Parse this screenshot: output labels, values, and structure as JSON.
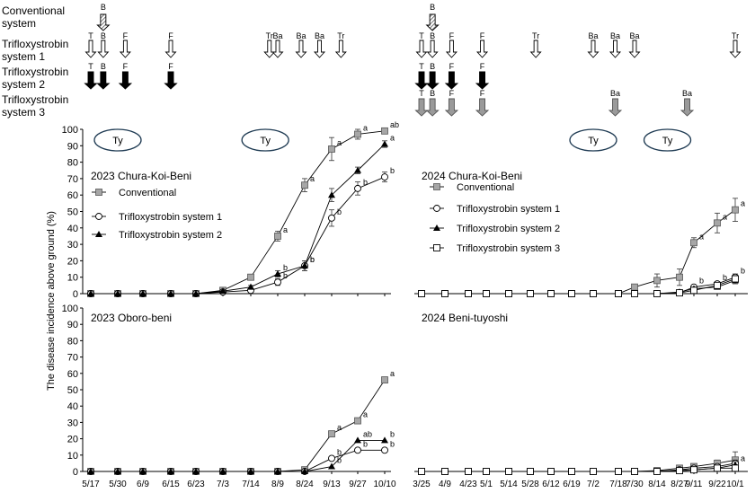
{
  "schedule": {
    "rows": [
      "Conventional system",
      "Trifloxystrobin system 1",
      "Trifloxystrobin system 2",
      "Trifloxystrobin system 3"
    ],
    "row_lines": [
      [
        "Conventional",
        "system"
      ],
      [
        "Trifloxystrobin",
        "system 1"
      ],
      [
        "Trifloxystrobin",
        "system 2"
      ],
      [
        "Trifloxystrobin",
        "system 3"
      ]
    ],
    "arrows": [
      {
        "year": 2023,
        "row": 0,
        "date": "5/23",
        "label": "B",
        "style": "hatched"
      },
      {
        "year": 2023,
        "row": 1,
        "date": "5/17",
        "label": "T",
        "style": "open"
      },
      {
        "year": 2023,
        "row": 1,
        "date": "5/23",
        "label": "B",
        "style": "open"
      },
      {
        "year": 2023,
        "row": 1,
        "date": "6/2",
        "label": "F",
        "style": "open"
      },
      {
        "year": 2023,
        "row": 1,
        "date": "6/15",
        "label": "F",
        "style": "open"
      },
      {
        "year": 2023,
        "row": 1,
        "date": "8/1",
        "label": "Tr",
        "style": "open"
      },
      {
        "year": 2023,
        "row": 1,
        "date": "8/9",
        "label": "Ba",
        "style": "open"
      },
      {
        "year": 2023,
        "row": 1,
        "date": "8/22",
        "label": "Ba",
        "style": "open"
      },
      {
        "year": 2023,
        "row": 1,
        "date": "9/4",
        "label": "Ba",
        "style": "open"
      },
      {
        "year": 2023,
        "row": 1,
        "date": "9/18",
        "label": "Tr",
        "style": "open"
      },
      {
        "year": 2023,
        "row": 2,
        "date": "5/17",
        "label": "T",
        "style": "black"
      },
      {
        "year": 2023,
        "row": 2,
        "date": "5/23",
        "label": "B",
        "style": "black"
      },
      {
        "year": 2023,
        "row": 2,
        "date": "6/2",
        "label": "F",
        "style": "black"
      },
      {
        "year": 2023,
        "row": 2,
        "date": "6/15",
        "label": "F",
        "style": "black"
      },
      {
        "year": 2024,
        "row": 0,
        "date": "4/1",
        "label": "B",
        "style": "hatched"
      },
      {
        "year": 2024,
        "row": 1,
        "date": "3/25",
        "label": "T",
        "style": "open"
      },
      {
        "year": 2024,
        "row": 1,
        "date": "4/1",
        "label": "B",
        "style": "open"
      },
      {
        "year": 2024,
        "row": 1,
        "date": "4/13",
        "label": "F",
        "style": "open"
      },
      {
        "year": 2024,
        "row": 1,
        "date": "4/30",
        "label": "F",
        "style": "open"
      },
      {
        "year": 2024,
        "row": 1,
        "date": "6/1",
        "label": "Tr",
        "style": "open"
      },
      {
        "year": 2024,
        "row": 1,
        "date": "7/2",
        "label": "Ba",
        "style": "open"
      },
      {
        "year": 2024,
        "row": 1,
        "date": "7/16",
        "label": "Ba",
        "style": "open"
      },
      {
        "year": 2024,
        "row": 1,
        "date": "7/30",
        "label": "Ba",
        "style": "open"
      },
      {
        "year": 2024,
        "row": 1,
        "date": "10/1",
        "label": "Tr",
        "style": "open"
      },
      {
        "year": 2024,
        "row": 2,
        "date": "3/25",
        "label": "T",
        "style": "black"
      },
      {
        "year": 2024,
        "row": 2,
        "date": "4/1",
        "label": "B",
        "style": "black"
      },
      {
        "year": 2024,
        "row": 2,
        "date": "4/13",
        "label": "F",
        "style": "black"
      },
      {
        "year": 2024,
        "row": 2,
        "date": "4/30",
        "label": "F",
        "style": "black"
      },
      {
        "year": 2024,
        "row": 3,
        "date": "3/25",
        "label": "T",
        "style": "gray"
      },
      {
        "year": 2024,
        "row": 3,
        "date": "4/1",
        "label": "B",
        "style": "gray"
      },
      {
        "year": 2024,
        "row": 3,
        "date": "4/13",
        "label": "F",
        "style": "gray"
      },
      {
        "year": 2024,
        "row": 3,
        "date": "4/30",
        "label": "F",
        "style": "gray"
      },
      {
        "year": 2024,
        "row": 3,
        "date": "7/16",
        "label": "Ba",
        "style": "gray"
      },
      {
        "year": 2024,
        "row": 3,
        "date": "9/4",
        "label": "Ba",
        "style": "gray"
      }
    ],
    "typhoons": [
      {
        "year": 2023,
        "date": "5/30",
        "label": "Ty"
      },
      {
        "year": 2023,
        "date": "7/28",
        "label": "Ty"
      },
      {
        "year": 2024,
        "date": "7/2",
        "label": "Ty"
      },
      {
        "year": 2024,
        "date": "8/20",
        "label": "Ty"
      }
    ]
  },
  "chart_data": [
    {
      "type": "line",
      "panel": "top-left",
      "title": "2023 Chura-Koi-Beni",
      "ylabel": "The disease incidence above ground  (%)",
      "ylim": [
        0,
        100
      ],
      "yticks": [
        0,
        10,
        20,
        30,
        40,
        50,
        60,
        70,
        80,
        90,
        100
      ],
      "x": [
        "5/17",
        "5/30",
        "6/9",
        "6/15",
        "6/23",
        "7/3",
        "7/14",
        "8/9",
        "8/24",
        "9/13",
        "9/27",
        "10/10"
      ],
      "show_xtick_labels": false,
      "series": [
        {
          "name": "Conventional",
          "marker": "gray-square",
          "values": [
            0,
            0,
            0,
            0,
            0,
            2,
            10,
            35,
            66,
            88,
            97,
            99
          ],
          "error": [
            0,
            0,
            0,
            0,
            0,
            1,
            1,
            3,
            4,
            7,
            3,
            1
          ],
          "labels": [
            "",
            "",
            "",
            "",
            "",
            "",
            "",
            "a",
            "a",
            "a",
            "a",
            "ab"
          ]
        },
        {
          "name": "Trifloxystrobin system 1",
          "marker": "open-circle",
          "values": [
            0,
            0,
            0,
            0,
            0,
            1,
            2,
            7,
            17,
            46,
            64,
            71
          ],
          "error": [
            0,
            0,
            0,
            0,
            0,
            0.5,
            0.5,
            2,
            3,
            5,
            4,
            3
          ],
          "labels": [
            "",
            "",
            "",
            "",
            "",
            "",
            "",
            "b",
            "b",
            "b",
            "b",
            "b"
          ]
        },
        {
          "name": "Trifloxystrobin system 2",
          "marker": "black-triangle",
          "values": [
            0,
            0,
            0,
            0,
            0,
            1.5,
            4,
            12,
            17,
            60,
            75,
            91
          ],
          "error": [
            0,
            0,
            0,
            0,
            0,
            0.5,
            1,
            2,
            3,
            4,
            2,
            2
          ],
          "labels": [
            "",
            "",
            "",
            "",
            "",
            "",
            "",
            "b",
            "b",
            "",
            "",
            "a"
          ]
        }
      ],
      "legend": "left"
    },
    {
      "type": "line",
      "panel": "top-right",
      "title": "2024 Chura-Koi-Beni",
      "ylim": [
        0,
        100
      ],
      "x": [
        "3/25",
        "4/9",
        "4/23",
        "5/1",
        "5/14",
        "5/28",
        "6/12",
        "6/19",
        "7/2",
        "7/18",
        "7/30",
        "8/14",
        "8/27",
        "9/11",
        "9/22",
        "10/1"
      ],
      "show_xtick_labels": false,
      "series": [
        {
          "name": "Conventional",
          "marker": "gray-square",
          "values": [
            0,
            0,
            0,
            0,
            0,
            0,
            0,
            0,
            0,
            0,
            4,
            8,
            10,
            31,
            43,
            51
          ],
          "error": [
            0,
            0,
            0,
            0,
            0,
            0,
            0,
            0,
            0,
            0,
            1,
            4,
            5,
            3,
            6,
            7
          ],
          "labels": [
            "",
            "",
            "",
            "",
            "",
            "",
            "",
            "",
            "",
            "",
            "",
            "",
            "",
            "a",
            "a",
            "a"
          ]
        },
        {
          "name": "Trifloxystrobin system 1",
          "marker": "open-circle",
          "values": [
            0,
            0,
            0,
            0,
            0,
            0,
            0,
            0,
            0,
            0,
            0,
            0,
            0.5,
            4,
            6,
            10
          ],
          "error": [
            0,
            0,
            0,
            0,
            0,
            0,
            0,
            0,
            0,
            0,
            0,
            0.5,
            0.5,
            1,
            1,
            2
          ],
          "labels": [
            "",
            "",
            "",
            "",
            "",
            "",
            "",
            "",
            "",
            "",
            "",
            "",
            "",
            "b",
            "b",
            "b"
          ]
        },
        {
          "name": "Trifloxystrobin system 2",
          "marker": "black-triangle",
          "values": [
            0,
            0,
            0,
            0,
            0,
            0,
            0,
            0,
            0,
            0,
            0,
            0,
            1,
            3,
            4,
            8
          ],
          "error": [
            0,
            0,
            0,
            0,
            0,
            0,
            0,
            0,
            0,
            0,
            0,
            0.5,
            0.5,
            1,
            1,
            2
          ],
          "labels": [
            "",
            "",
            "",
            "",
            "",
            "",
            "",
            "",
            "",
            "",
            "",
            "",
            "",
            "",
            "",
            ""
          ]
        },
        {
          "name": "Trifloxystrobin system 3",
          "marker": "open-square",
          "values": [
            0,
            0,
            0,
            0,
            0,
            0,
            0,
            0,
            0,
            0,
            0,
            0,
            0.5,
            2,
            5,
            9
          ],
          "error": [
            0,
            0,
            0,
            0,
            0,
            0,
            0,
            0,
            0,
            0,
            0,
            0.5,
            0.5,
            1,
            1,
            2
          ],
          "labels": [
            "",
            "",
            "",
            "",
            "",
            "",
            "",
            "",
            "",
            "",
            "",
            "",
            "",
            "",
            "",
            ""
          ]
        }
      ],
      "legend": "left"
    },
    {
      "type": "line",
      "panel": "bottom-left",
      "title": "2023 Oboro-beni",
      "ylim": [
        0,
        100
      ],
      "yticks": [
        0,
        10,
        20,
        30,
        40,
        50,
        60,
        70,
        80,
        90,
        100
      ],
      "x": [
        "5/17",
        "5/30",
        "6/9",
        "6/15",
        "6/23",
        "7/3",
        "7/14",
        "8/9",
        "8/24",
        "9/13",
        "9/27",
        "10/10"
      ],
      "show_xtick_labels": true,
      "series": [
        {
          "name": "Conventional",
          "marker": "gray-square",
          "values": [
            0,
            0,
            0,
            0,
            0,
            0,
            0,
            0,
            1,
            23,
            31,
            56
          ],
          "error": [
            0,
            0,
            0,
            0,
            0,
            0,
            0,
            0,
            0,
            0,
            0,
            0
          ],
          "labels": [
            "",
            "",
            "",
            "",
            "",
            "",
            "",
            "",
            "",
            "a",
            "a",
            "a"
          ]
        },
        {
          "name": "Trifloxystrobin system 1",
          "marker": "open-circle",
          "values": [
            0,
            0,
            0,
            0,
            0,
            0,
            0,
            0,
            0,
            8,
            13,
            13
          ],
          "error": [
            0,
            0,
            0,
            0,
            0,
            0,
            0,
            0,
            0,
            0,
            0,
            0
          ],
          "labels": [
            "",
            "",
            "",
            "",
            "",
            "",
            "",
            "",
            "",
            "b",
            "b",
            "b"
          ]
        },
        {
          "name": "Trifloxystrobin system 2",
          "marker": "black-triangle",
          "values": [
            0,
            0,
            0,
            0,
            0,
            0,
            0,
            0,
            0,
            3,
            19,
            19
          ],
          "error": [
            0,
            0,
            0,
            0,
            0,
            0,
            0,
            0,
            0,
            0,
            0,
            0
          ],
          "labels": [
            "",
            "",
            "",
            "",
            "",
            "",
            "",
            "",
            "",
            "b",
            "ab",
            "b"
          ]
        }
      ]
    },
    {
      "type": "line",
      "panel": "bottom-right",
      "title": "2024 Beni-tuyoshi",
      "ylim": [
        0,
        100
      ],
      "x": [
        "3/25",
        "4/9",
        "4/23",
        "5/1",
        "5/14",
        "5/28",
        "6/12",
        "6/19",
        "7/2",
        "7/18",
        "7/30",
        "8/14",
        "8/27",
        "9/11",
        "9/22",
        "10/1"
      ],
      "show_xtick_labels": true,
      "series": [
        {
          "name": "Conventional",
          "marker": "gray-square",
          "values": [
            0,
            0,
            0,
            0,
            0,
            0,
            0,
            0,
            0,
            0,
            0,
            0.5,
            2,
            3,
            5,
            7
          ],
          "error": [
            0,
            0,
            0,
            0,
            0,
            0,
            0,
            0,
            0,
            0,
            0,
            0.5,
            1,
            1,
            2,
            5
          ],
          "labels": [
            "",
            "",
            "",
            "",
            "",
            "",
            "",
            "",
            "",
            "",
            "",
            "",
            "",
            "",
            "",
            ""
          ]
        },
        {
          "name": "Trifloxystrobin system 1",
          "marker": "open-circle",
          "values": [
            0,
            0,
            0,
            0,
            0,
            0,
            0,
            0,
            0,
            0,
            0,
            0,
            1,
            2,
            3,
            5
          ],
          "error": [
            0,
            0,
            0,
            0,
            0,
            0,
            0,
            0,
            0,
            0,
            0,
            0.5,
            0.5,
            1,
            1,
            2
          ],
          "labels": [
            "",
            "",
            "",
            "",
            "",
            "",
            "",
            "",
            "",
            "",
            "",
            "",
            "",
            "",
            "",
            ""
          ]
        },
        {
          "name": "Trifloxystrobin system 2",
          "marker": "black-triangle",
          "values": [
            0,
            0,
            0,
            0,
            0,
            0,
            0,
            0,
            0,
            0,
            0,
            0,
            0.5,
            1,
            2,
            4
          ],
          "error": [
            0,
            0,
            0,
            0,
            0,
            0,
            0,
            0,
            0,
            0,
            0,
            0.5,
            0.5,
            1,
            1,
            2
          ],
          "labels": [
            "",
            "",
            "",
            "",
            "",
            "",
            "",
            "",
            "",
            "",
            "",
            "",
            "",
            "",
            "",
            "a"
          ]
        },
        {
          "name": "Trifloxystrobin system 3",
          "marker": "open-square",
          "values": [
            0,
            0,
            0,
            0,
            0,
            0,
            0,
            0,
            0,
            0,
            0,
            0,
            0.5,
            1,
            2,
            2
          ],
          "error": [
            0,
            0,
            0,
            0,
            0,
            0,
            0,
            0,
            0,
            0,
            0,
            0,
            0.5,
            0.5,
            1,
            1
          ],
          "labels": [
            "",
            "",
            "",
            "",
            "",
            "",
            "",
            "",
            "",
            "",
            "",
            "",
            "",
            "",
            "",
            ""
          ]
        }
      ]
    }
  ]
}
